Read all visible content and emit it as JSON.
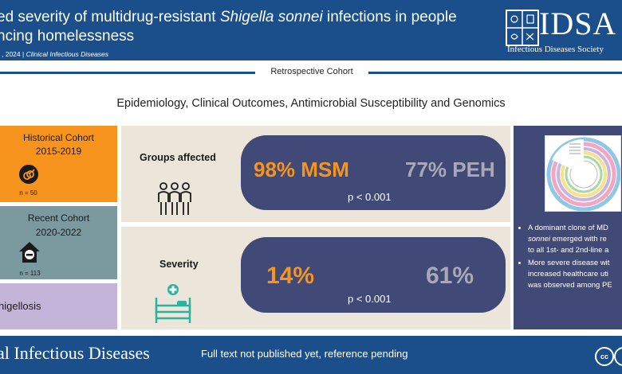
{
  "header": {
    "title_line1_a": "ed severity of multidrug-resistant ",
    "title_line1_italic": "Shigella sonnei",
    "title_line1_b": " infections in people",
    "title_line2": "ncing homelessness",
    "citation_date": ", 2024 | ",
    "citation_journal": "Clinical Infectious Diseases",
    "logo_text": "IDSA",
    "logo_subtext": "Infectious Diseases Society"
  },
  "design": {
    "label": "Retrospective Cohort",
    "subtitle": "Epidemiology, Clinical Outcomes, Antimicrobial Susceptibility and Genomics"
  },
  "cohorts": [
    {
      "title": "Historical Cohort",
      "years": "2015-2019",
      "n": "n = 50",
      "icon": "msm-symbol-icon"
    },
    {
      "title": "Recent Cohort",
      "years": "2020-2022",
      "n": "n = 113",
      "icon": "house-person-icon"
    },
    {
      "title": "higellosis"
    }
  ],
  "panels": [
    {
      "label": "Groups affected",
      "left_value": "98% MSM",
      "right_value": "77% PEH",
      "p_value": "p < 0.001",
      "icon": "people-group-icon"
    },
    {
      "label": "Severity",
      "left_value": "14%",
      "right_value": "61%",
      "p_value": "p < 0.001",
      "icon": "hospital-bed-icon"
    }
  ],
  "right_panel": {
    "image": "phylogenetic-tree-image",
    "bullet1": [
      "A dominant clone of MD",
      "sonnei",
      " emerged with re",
      "to all 1st- and 2nd-line a"
    ],
    "bullet2": [
      "More severe disease wit",
      "increased healthcare uti",
      "was observed among PE"
    ]
  },
  "footer": {
    "journal": "al Infectious Diseases",
    "note": "Full text not published yet, reference pending",
    "license_icon": "cc-license-icon"
  },
  "colors": {
    "header_blue": "#1b4f8b",
    "orange": "#f7941e",
    "slate": "#7a9aa0",
    "lavender": "#c4b4d9",
    "pill_navy": "#414a77",
    "beige": "#ece6da"
  }
}
